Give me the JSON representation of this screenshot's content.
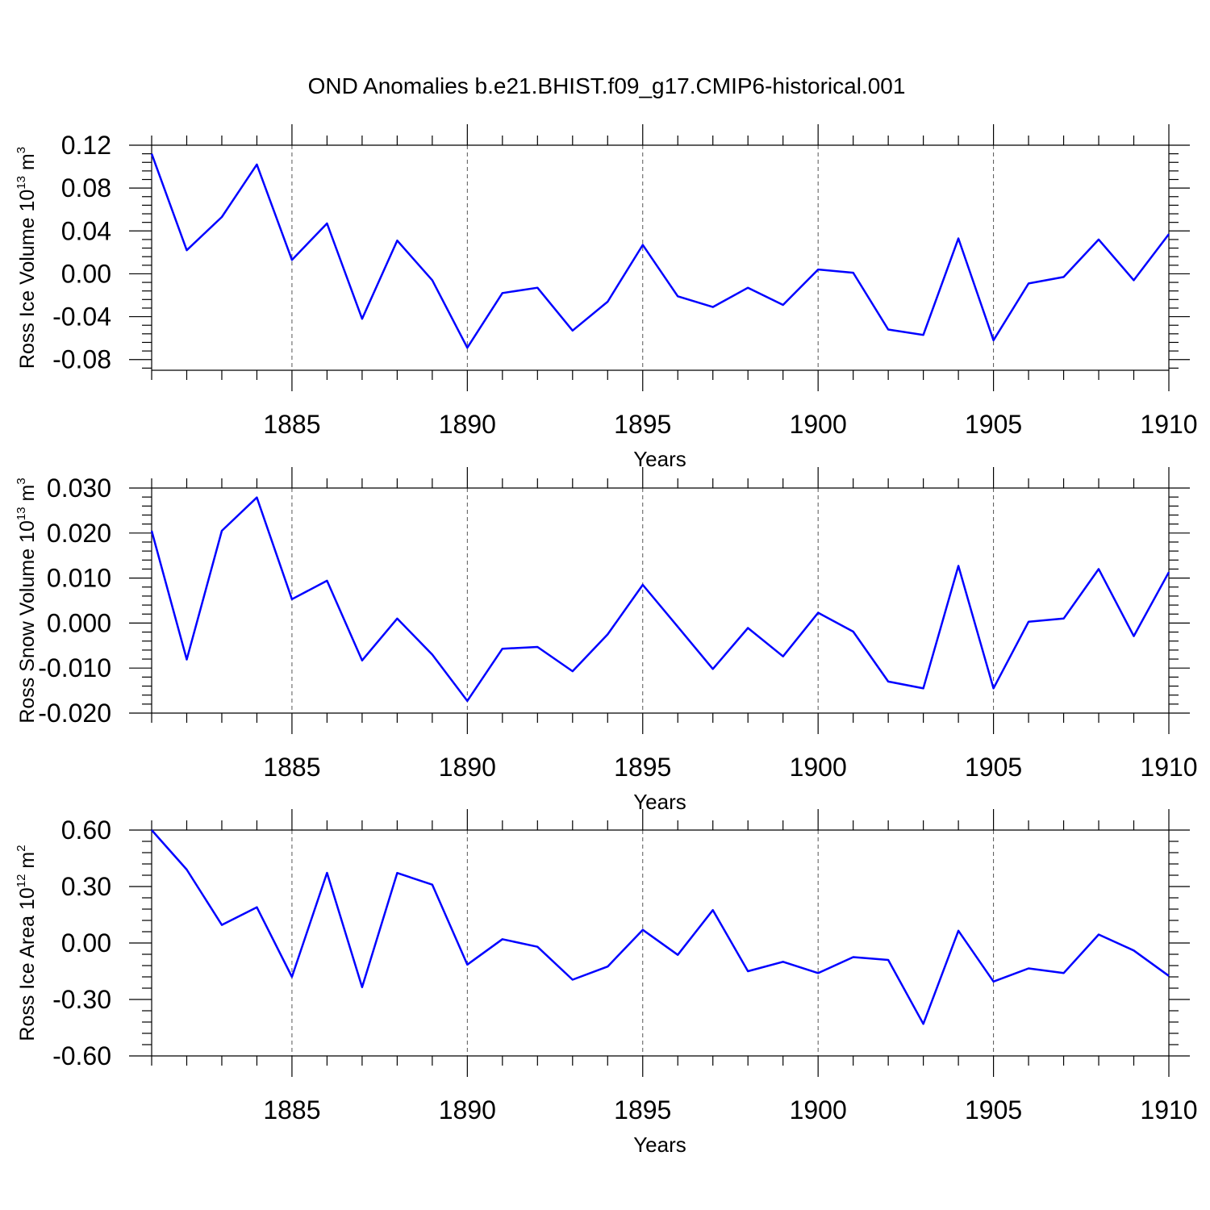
{
  "title": "OND Anomalies b.e21.BHIST.f09_g17.CMIP6-historical.001",
  "line_color": "#0000ff",
  "chart_data": [
    {
      "type": "line",
      "ylabel_main": "Ross Ice Volume 10",
      "ylabel_exp": "13",
      "ylabel_unit": " m",
      "ylabel_unit_exp": "3",
      "xlabel": "Years",
      "xlim": [
        1881,
        1910
      ],
      "ylim": [
        -0.09,
        0.12
      ],
      "yticks": [
        -0.08,
        -0.04,
        0.0,
        0.04,
        0.08,
        0.12
      ],
      "yticklabels": [
        "-0.08",
        "-0.04",
        "0.00",
        "0.04",
        "0.08",
        "0.12"
      ],
      "xticks": [
        1885,
        1890,
        1895,
        1900,
        1905,
        1910
      ],
      "xticklabels": [
        "1885",
        "1890",
        "1895",
        "1900",
        "1905",
        "1910"
      ],
      "grid": "dashed vertical at major x ticks",
      "x": [
        1881,
        1882,
        1883,
        1884,
        1885,
        1886,
        1887,
        1888,
        1889,
        1890,
        1891,
        1892,
        1893,
        1894,
        1895,
        1896,
        1897,
        1898,
        1899,
        1900,
        1901,
        1902,
        1903,
        1904,
        1905,
        1906,
        1907,
        1908,
        1909,
        1910
      ],
      "values": [
        0.112,
        0.022,
        0.053,
        0.102,
        0.013,
        0.047,
        -0.042,
        0.031,
        -0.006,
        -0.069,
        -0.018,
        -0.013,
        -0.053,
        -0.026,
        0.027,
        -0.021,
        -0.031,
        -0.013,
        -0.029,
        0.004,
        0.001,
        -0.052,
        -0.057,
        0.033,
        -0.062,
        -0.009,
        -0.003,
        0.032,
        -0.006,
        0.037
      ]
    },
    {
      "type": "line",
      "ylabel_main": "Ross Snow Volume 10",
      "ylabel_exp": "13",
      "ylabel_unit": " m",
      "ylabel_unit_exp": "3",
      "xlabel": "Years",
      "xlim": [
        1881,
        1910
      ],
      "ylim": [
        -0.02,
        0.03
      ],
      "yticks": [
        -0.02,
        -0.01,
        0.0,
        0.01,
        0.02,
        0.03
      ],
      "yticklabels": [
        "-0.020",
        "-0.010",
        "0.000",
        "0.010",
        "0.020",
        "0.030"
      ],
      "xticks": [
        1885,
        1890,
        1895,
        1900,
        1905,
        1910
      ],
      "xticklabels": [
        "1885",
        "1890",
        "1895",
        "1900",
        "1905",
        "1910"
      ],
      "grid": "dashed vertical at major x ticks",
      "x": [
        1881,
        1882,
        1883,
        1884,
        1885,
        1886,
        1887,
        1888,
        1889,
        1890,
        1891,
        1892,
        1893,
        1894,
        1895,
        1896,
        1897,
        1898,
        1899,
        1900,
        1901,
        1902,
        1903,
        1904,
        1905,
        1906,
        1907,
        1908,
        1909,
        1910
      ],
      "values": [
        0.0205,
        -0.0081,
        0.0205,
        0.0279,
        0.0053,
        0.0094,
        -0.0083,
        0.001,
        -0.007,
        -0.0173,
        -0.0057,
        -0.0053,
        -0.0107,
        -0.0025,
        0.0085,
        -0.0008,
        -0.0102,
        -0.0011,
        -0.0074,
        0.0023,
        -0.0019,
        -0.013,
        -0.0145,
        0.0127,
        -0.0145,
        0.0003,
        0.001,
        0.012,
        -0.0029,
        0.0113
      ]
    },
    {
      "type": "line",
      "ylabel_main": "Ross Ice Area 10",
      "ylabel_exp": "12",
      "ylabel_unit": " m",
      "ylabel_unit_exp": "2",
      "xlabel": "Years",
      "xlim": [
        1881,
        1910
      ],
      "ylim": [
        -0.6,
        0.6
      ],
      "yticks": [
        -0.6,
        -0.3,
        0.0,
        0.3,
        0.6
      ],
      "yticklabels": [
        "-0.60",
        "-0.30",
        "0.00",
        "0.30",
        "0.60"
      ],
      "xticks": [
        1885,
        1890,
        1895,
        1900,
        1905,
        1910
      ],
      "xticklabels": [
        "1885",
        "1890",
        "1895",
        "1900",
        "1905",
        "1910"
      ],
      "grid": "dashed vertical at major x ticks",
      "x": [
        1881,
        1882,
        1883,
        1884,
        1885,
        1886,
        1887,
        1888,
        1889,
        1890,
        1891,
        1892,
        1893,
        1894,
        1895,
        1896,
        1897,
        1898,
        1899,
        1900,
        1901,
        1902,
        1903,
        1904,
        1905,
        1906,
        1907,
        1908,
        1909,
        1910
      ],
      "values": [
        0.6,
        0.39,
        0.096,
        0.19,
        -0.18,
        0.373,
        -0.235,
        0.372,
        0.31,
        -0.115,
        0.02,
        -0.02,
        -0.195,
        -0.125,
        0.07,
        -0.063,
        0.175,
        -0.15,
        -0.1,
        -0.16,
        -0.075,
        -0.09,
        -0.43,
        0.065,
        -0.205,
        -0.135,
        -0.16,
        0.045,
        -0.04,
        -0.175
      ]
    }
  ]
}
